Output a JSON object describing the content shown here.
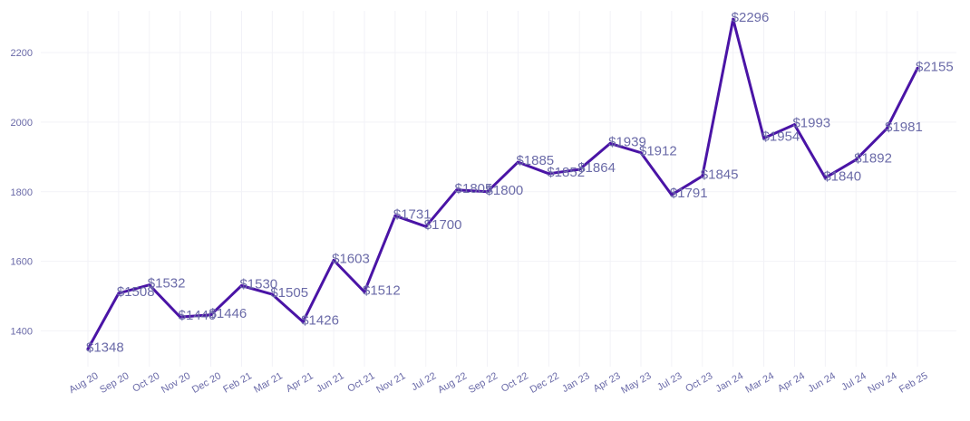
{
  "chart_data": {
    "type": "line",
    "title": "",
    "xlabel": "",
    "ylabel": "",
    "ylim": [
      1310,
      2320
    ],
    "yticks": [
      1400,
      1600,
      1800,
      2000,
      2200
    ],
    "grid": true,
    "legend": "none",
    "colors": {
      "line": "#4a14a6",
      "label": "#6b6ba8",
      "tick": "#6a6aa8",
      "grid": "#f2f2f7"
    },
    "categories": [
      "Aug 20",
      "Sep 20",
      "Oct 20",
      "Nov 20",
      "Dec 20",
      "Feb 21",
      "Mar 21",
      "Apr 21",
      "Jun 21",
      "Oct 21",
      "Nov 21",
      "Jul 22",
      "Aug 22",
      "Sep 22",
      "Oct 22",
      "Dec 22",
      "Jan 23",
      "Apr 23",
      "May 23",
      "Jul 23",
      "Oct 23",
      "Jan 24",
      "Mar 24",
      "Apr 24",
      "Jun 24",
      "Jul 24",
      "Nov 24",
      "Feb 25"
    ],
    "series": [
      {
        "values": [
          1348,
          1508,
          1532,
          1440,
          1446,
          1530,
          1505,
          1426,
          1603,
          1512,
          1731,
          1700,
          1805,
          1800,
          1885,
          1852,
          1864,
          1939,
          1912,
          1791,
          1845,
          2296,
          1954,
          1993,
          1840,
          1892,
          1981,
          2155
        ],
        "labels": [
          "$1348",
          "$1508",
          "$1532",
          "$1440",
          "$1446",
          "$1530",
          "$1505",
          "$1426",
          "$1603",
          "$1512",
          "$1731",
          "$1700",
          "$1805",
          "$1800",
          "$1885",
          "$1852",
          "$1864",
          "$1939",
          "$1912",
          "$1791",
          "$1845",
          "$2296",
          "$1954",
          "$1993",
          "$1840",
          "$1892",
          "$1981",
          "$2155"
        ]
      }
    ]
  }
}
